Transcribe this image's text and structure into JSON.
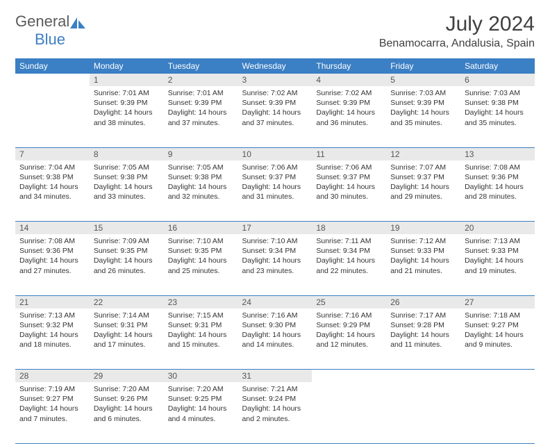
{
  "logo": {
    "part1": "General",
    "part2": "Blue"
  },
  "title": "July 2024",
  "location": "Benamocarra, Andalusia, Spain",
  "colors": {
    "header_bg": "#3b7fc4",
    "header_text": "#ffffff",
    "daynum_bg": "#e9e9e9",
    "text": "#333333",
    "logo_gray": "#5a5a5a",
    "logo_blue": "#3b7fc4",
    "border": "#3b7fc4"
  },
  "weekdays": [
    "Sunday",
    "Monday",
    "Tuesday",
    "Wednesday",
    "Thursday",
    "Friday",
    "Saturday"
  ],
  "weeks": [
    [
      null,
      {
        "n": "1",
        "sr": "7:01 AM",
        "ss": "9:39 PM",
        "dl": "14 hours and 38 minutes."
      },
      {
        "n": "2",
        "sr": "7:01 AM",
        "ss": "9:39 PM",
        "dl": "14 hours and 37 minutes."
      },
      {
        "n": "3",
        "sr": "7:02 AM",
        "ss": "9:39 PM",
        "dl": "14 hours and 37 minutes."
      },
      {
        "n": "4",
        "sr": "7:02 AM",
        "ss": "9:39 PM",
        "dl": "14 hours and 36 minutes."
      },
      {
        "n": "5",
        "sr": "7:03 AM",
        "ss": "9:39 PM",
        "dl": "14 hours and 35 minutes."
      },
      {
        "n": "6",
        "sr": "7:03 AM",
        "ss": "9:38 PM",
        "dl": "14 hours and 35 minutes."
      }
    ],
    [
      {
        "n": "7",
        "sr": "7:04 AM",
        "ss": "9:38 PM",
        "dl": "14 hours and 34 minutes."
      },
      {
        "n": "8",
        "sr": "7:05 AM",
        "ss": "9:38 PM",
        "dl": "14 hours and 33 minutes."
      },
      {
        "n": "9",
        "sr": "7:05 AM",
        "ss": "9:38 PM",
        "dl": "14 hours and 32 minutes."
      },
      {
        "n": "10",
        "sr": "7:06 AM",
        "ss": "9:37 PM",
        "dl": "14 hours and 31 minutes."
      },
      {
        "n": "11",
        "sr": "7:06 AM",
        "ss": "9:37 PM",
        "dl": "14 hours and 30 minutes."
      },
      {
        "n": "12",
        "sr": "7:07 AM",
        "ss": "9:37 PM",
        "dl": "14 hours and 29 minutes."
      },
      {
        "n": "13",
        "sr": "7:08 AM",
        "ss": "9:36 PM",
        "dl": "14 hours and 28 minutes."
      }
    ],
    [
      {
        "n": "14",
        "sr": "7:08 AM",
        "ss": "9:36 PM",
        "dl": "14 hours and 27 minutes."
      },
      {
        "n": "15",
        "sr": "7:09 AM",
        "ss": "9:35 PM",
        "dl": "14 hours and 26 minutes."
      },
      {
        "n": "16",
        "sr": "7:10 AM",
        "ss": "9:35 PM",
        "dl": "14 hours and 25 minutes."
      },
      {
        "n": "17",
        "sr": "7:10 AM",
        "ss": "9:34 PM",
        "dl": "14 hours and 23 minutes."
      },
      {
        "n": "18",
        "sr": "7:11 AM",
        "ss": "9:34 PM",
        "dl": "14 hours and 22 minutes."
      },
      {
        "n": "19",
        "sr": "7:12 AM",
        "ss": "9:33 PM",
        "dl": "14 hours and 21 minutes."
      },
      {
        "n": "20",
        "sr": "7:13 AM",
        "ss": "9:33 PM",
        "dl": "14 hours and 19 minutes."
      }
    ],
    [
      {
        "n": "21",
        "sr": "7:13 AM",
        "ss": "9:32 PM",
        "dl": "14 hours and 18 minutes."
      },
      {
        "n": "22",
        "sr": "7:14 AM",
        "ss": "9:31 PM",
        "dl": "14 hours and 17 minutes."
      },
      {
        "n": "23",
        "sr": "7:15 AM",
        "ss": "9:31 PM",
        "dl": "14 hours and 15 minutes."
      },
      {
        "n": "24",
        "sr": "7:16 AM",
        "ss": "9:30 PM",
        "dl": "14 hours and 14 minutes."
      },
      {
        "n": "25",
        "sr": "7:16 AM",
        "ss": "9:29 PM",
        "dl": "14 hours and 12 minutes."
      },
      {
        "n": "26",
        "sr": "7:17 AM",
        "ss": "9:28 PM",
        "dl": "14 hours and 11 minutes."
      },
      {
        "n": "27",
        "sr": "7:18 AM",
        "ss": "9:27 PM",
        "dl": "14 hours and 9 minutes."
      }
    ],
    [
      {
        "n": "28",
        "sr": "7:19 AM",
        "ss": "9:27 PM",
        "dl": "14 hours and 7 minutes."
      },
      {
        "n": "29",
        "sr": "7:20 AM",
        "ss": "9:26 PM",
        "dl": "14 hours and 6 minutes."
      },
      {
        "n": "30",
        "sr": "7:20 AM",
        "ss": "9:25 PM",
        "dl": "14 hours and 4 minutes."
      },
      {
        "n": "31",
        "sr": "7:21 AM",
        "ss": "9:24 PM",
        "dl": "14 hours and 2 minutes."
      },
      null,
      null,
      null
    ]
  ],
  "labels": {
    "sunrise": "Sunrise:",
    "sunset": "Sunset:",
    "daylight": "Daylight:"
  }
}
